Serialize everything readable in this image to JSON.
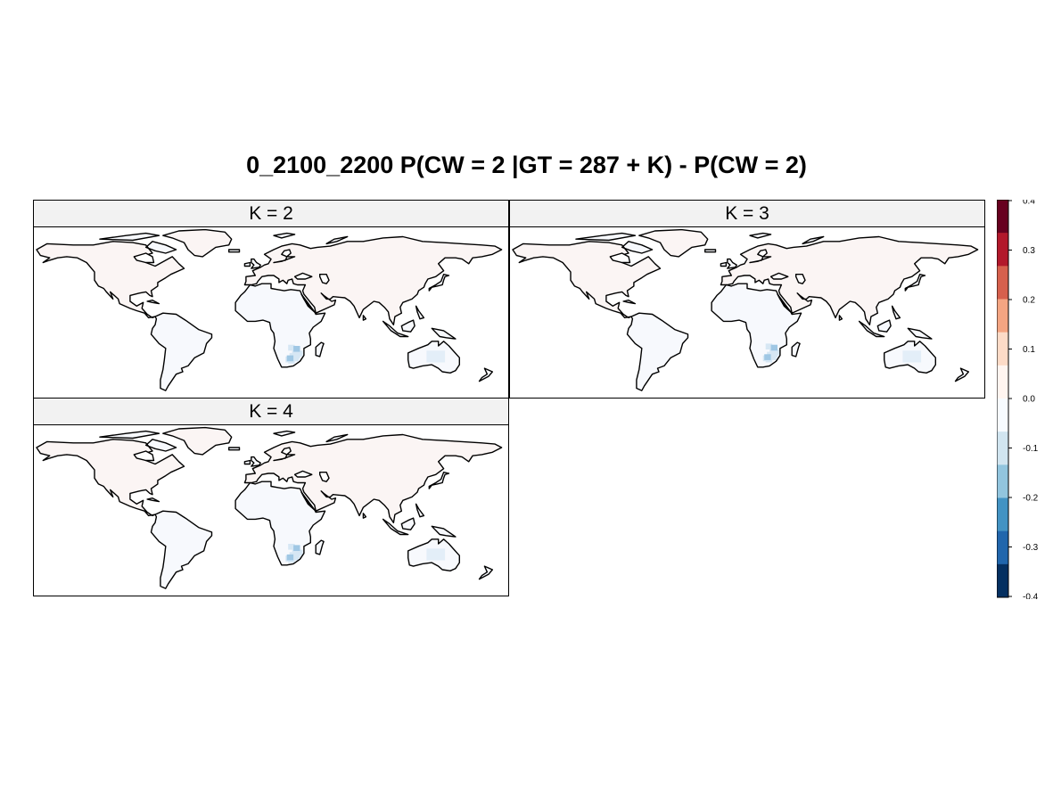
{
  "title": "0_2100_2200 P(CW = 2 |GT = 287 + K) - P(CW = 2)",
  "panels": [
    {
      "label": "K = 2",
      "k": 2
    },
    {
      "label": "K = 3",
      "k": 3
    },
    {
      "label": "K = 4",
      "k": 4
    }
  ],
  "colorkey": {
    "ticks": [
      "0.4",
      "0.3",
      "0.2",
      "0.1",
      "0.0",
      "-0.1",
      "-0.2",
      "-0.3",
      "-0.4"
    ],
    "range": [
      -0.4,
      0.4
    ],
    "colors": [
      "#053061",
      "#2166ac",
      "#4393c3",
      "#92c5de",
      "#d1e5f0",
      "#f7fbff",
      "#fff5f0",
      "#fddbc7",
      "#f4a582",
      "#d6604d",
      "#b2182b",
      "#67001f"
    ]
  }
}
